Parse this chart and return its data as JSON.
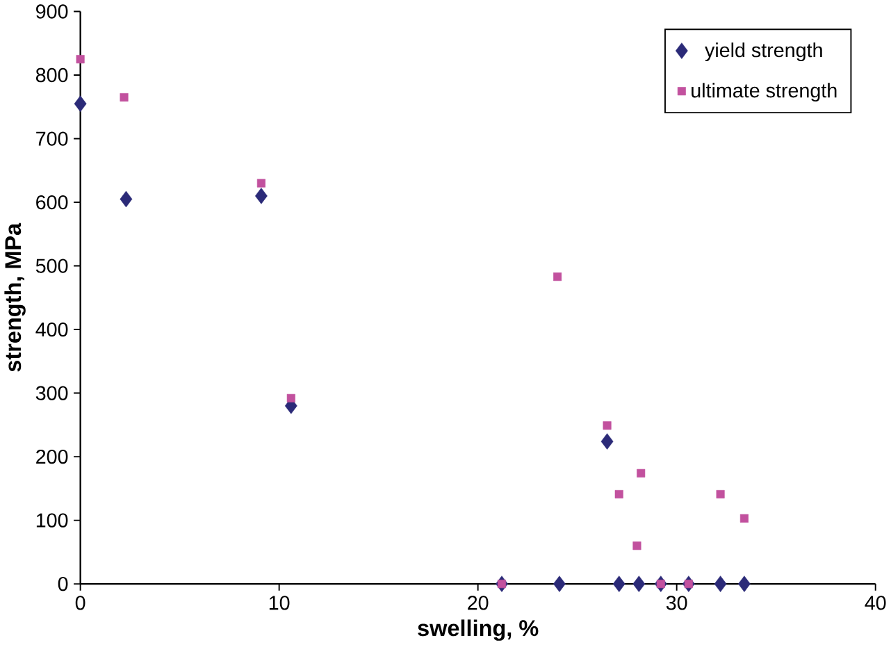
{
  "chart_data": {
    "type": "scatter",
    "xlabel": "swelling, %",
    "ylabel": "strength, MPa",
    "xlim": [
      0,
      40
    ],
    "ylim": [
      0,
      900
    ],
    "xticks": [
      0,
      10,
      20,
      30,
      40
    ],
    "yticks": [
      0,
      100,
      200,
      300,
      400,
      500,
      600,
      700,
      800,
      900
    ],
    "grid": false,
    "legend": "top right",
    "series": [
      {
        "name": "yield strength",
        "color": "#2b2a78",
        "marker": "diamond",
        "x": [
          0,
          2.3,
          9.1,
          10.6,
          21.2,
          24.1,
          26.5,
          27.1,
          28.1,
          29.2,
          30.6,
          32.2,
          33.4
        ],
        "values": [
          755,
          605,
          610,
          280,
          0,
          0,
          224,
          0,
          0,
          0,
          0,
          0,
          0
        ]
      },
      {
        "name": "ultimate strength",
        "color": "#c2519e",
        "marker": "square",
        "x": [
          0,
          2.2,
          9.1,
          10.6,
          21.2,
          24.0,
          26.5,
          27.1,
          28.2,
          28.0,
          29.2,
          30.6,
          32.2,
          33.4
        ],
        "values": [
          825,
          765,
          630,
          292,
          0,
          483,
          249,
          141,
          174,
          60,
          0,
          0,
          141,
          103
        ]
      }
    ]
  }
}
